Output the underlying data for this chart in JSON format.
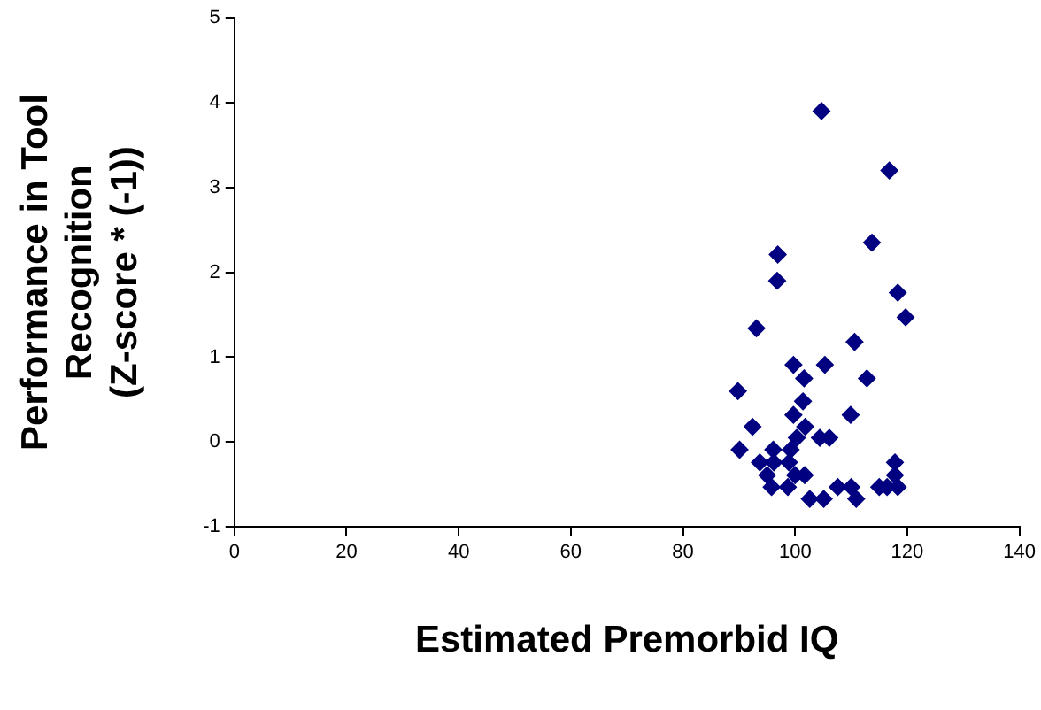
{
  "chart_data": {
    "type": "scatter",
    "xlabel": "Estimated Premorbid IQ",
    "ylabel": "Performance in Tool\nRecognition\n(Z-score * (-1))",
    "xlim": [
      0,
      140
    ],
    "xticks": [
      0,
      20,
      40,
      60,
      80,
      100,
      120,
      140
    ],
    "ylim": [
      -1,
      5
    ],
    "yticks": [
      -1,
      0,
      1,
      2,
      3,
      4,
      5
    ],
    "grid": false,
    "legend": false,
    "marker": "diamond",
    "series": [
      {
        "color": "#000080",
        "x": [
          104.7,
          116.8,
          113.7,
          96.9,
          96.8,
          118.3,
          119.7,
          93.1,
          110.6,
          99.7,
          105.3,
          101.6,
          112.8,
          89.8,
          101.4,
          99.7,
          109.9,
          92.4,
          101.8,
          100.3,
          104.4,
          106.1,
          90.1,
          96.1,
          99.2,
          93.7,
          96.2,
          98.9,
          117.8,
          95,
          100,
          101.7,
          117.8,
          95.8,
          98.7,
          107.6,
          110,
          115,
          116.4,
          118.3,
          102.6,
          105.1,
          110.9
        ],
        "values": [
          3.9,
          3.2,
          2.35,
          2.21,
          1.9,
          1.76,
          1.47,
          1.34,
          1.18,
          0.91,
          0.91,
          0.75,
          0.75,
          0.6,
          0.48,
          0.32,
          0.32,
          0.18,
          0.18,
          0.05,
          0.05,
          0.05,
          -0.09,
          -0.09,
          -0.09,
          -0.24,
          -0.24,
          -0.24,
          -0.24,
          -0.39,
          -0.39,
          -0.39,
          -0.39,
          -0.53,
          -0.53,
          -0.53,
          -0.53,
          -0.53,
          -0.53,
          -0.53,
          -0.67,
          -0.67,
          -0.67
        ]
      }
    ]
  }
}
